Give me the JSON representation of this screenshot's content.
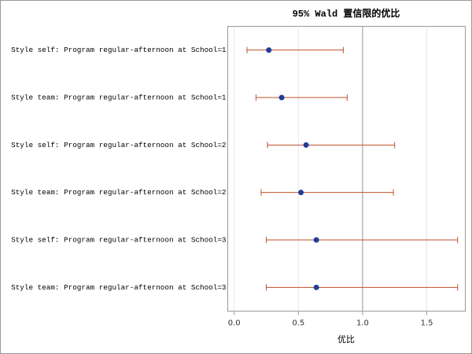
{
  "chart_data": {
    "type": "forest",
    "title": "95% Wald 置信限的优比",
    "x_label": "优比",
    "categories": [
      "Style self: Program regular-afternoon at School=1",
      "Style team: Program regular-afternoon at School=1",
      "Style self: Program regular-afternoon at School=2",
      "Style team: Program regular-afternoon at School=2",
      "Style self: Program regular-afternoon at School=3",
      "Style team: Program regular-afternoon at School=3"
    ],
    "values": [
      0.27,
      0.37,
      0.56,
      0.52,
      0.64,
      0.64
    ],
    "lower": [
      0.1,
      0.17,
      0.26,
      0.21,
      0.25,
      0.25
    ],
    "upper": [
      0.85,
      0.88,
      1.25,
      1.24,
      1.74,
      1.74
    ],
    "point_color": "#1f3d99",
    "bar_color": "#c0502a",
    "reference_line": 1,
    "xlim": [
      -0.05,
      1.8
    ],
    "xticks": [
      {
        "value": 0,
        "label": "0.0"
      },
      0.5,
      {
        "value": 1,
        "label": "1.0"
      },
      1.5
    ],
    "grid": true
  }
}
